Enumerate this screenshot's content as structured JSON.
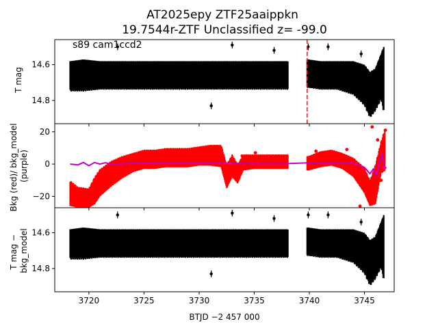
{
  "chart_data": [
    {
      "type": "scatter",
      "title": "AT2025epy  ZTF25aaippkn",
      "subtitle": "19.7544r-ZTF Unclassified z= -99.0",
      "annotation": "s89 cam1ccd2",
      "ylabel": "T mag",
      "ylim": [
        14.93,
        14.46
      ],
      "yticks": [
        "14.6",
        "14.8"
      ],
      "ytick_values": [
        14.6,
        14.8
      ],
      "marker_line_x": 3739.8,
      "colors": {
        "points": "#000000",
        "marker_line": "#d62728"
      },
      "series": [
        {
          "x": [
            3718.3,
            3719.5,
            3721,
            3723,
            3725,
            3727,
            3729,
            3731,
            3733,
            3735,
            3737,
            3738.0,
            3739.9,
            3741,
            3742.5,
            3744,
            3745,
            3745.5,
            3746,
            3746.5,
            3746.8
          ],
          "y": [
            14.66,
            14.66,
            14.66,
            14.66,
            14.66,
            14.66,
            14.66,
            14.66,
            14.66,
            14.66,
            14.66,
            14.66,
            14.65,
            14.66,
            14.66,
            14.67,
            14.71,
            14.78,
            14.73,
            14.66,
            14.6
          ],
          "ylow": [
            14.58,
            14.57,
            14.58,
            14.58,
            14.58,
            14.58,
            14.58,
            14.58,
            14.58,
            14.58,
            14.58,
            14.58,
            14.57,
            14.58,
            14.58,
            14.58,
            14.6,
            14.64,
            14.62,
            14.54,
            14.49
          ],
          "yhigh": [
            14.75,
            14.75,
            14.74,
            14.74,
            14.74,
            14.74,
            14.74,
            14.74,
            14.74,
            14.74,
            14.74,
            14.74,
            14.73,
            14.74,
            14.74,
            14.77,
            14.83,
            14.9,
            14.86,
            14.8,
            14.88
          ]
        }
      ]
    },
    {
      "type": "line",
      "ylabel": "Bkg (red)/ bkg_model (purple)",
      "ylim": [
        -27,
        25
      ],
      "yticks": [
        "20",
        "0",
        "−20"
      ],
      "ytick_values": [
        20,
        0,
        -20
      ],
      "colors": {
        "bkg": "#ff0000",
        "bkg_model": "#bf00bf"
      },
      "series": [
        {
          "name": "Bkg (red)",
          "x": [
            3718.3,
            3719,
            3720,
            3720.5,
            3721,
            3722,
            3723,
            3724,
            3725,
            3726,
            3727,
            3728,
            3729,
            3730,
            3731,
            3732,
            3732.5,
            3733,
            3733.5,
            3734,
            3735,
            3736,
            3737,
            3738.0,
            3739.9,
            3741,
            3742,
            3743,
            3744,
            3745,
            3745.5,
            3746,
            3746.5,
            3746.9
          ],
          "y": [
            -18,
            -21,
            -22,
            -17,
            -10,
            -5,
            -2,
            1,
            3,
            3,
            4,
            4,
            4,
            5,
            6,
            5,
            -8,
            -2,
            -6,
            1,
            2,
            2,
            2,
            2,
            1,
            3,
            4,
            2,
            -2,
            -10,
            -20,
            -15,
            5,
            12
          ],
          "ylow": [
            -26,
            -27,
            -27,
            -25,
            -20,
            -14,
            -9,
            -5,
            -3,
            -3,
            -2,
            -2,
            -2,
            -1,
            -1,
            -2,
            -15,
            -8,
            -12,
            -4,
            -3,
            -3,
            -3,
            -3,
            -4,
            -2,
            -1,
            -3,
            -8,
            -18,
            -26,
            -25,
            -6,
            -4
          ],
          "yhigh": [
            -10,
            -14,
            -15,
            -8,
            -3,
            2,
            5,
            7,
            9,
            9,
            10,
            10,
            10,
            11,
            12,
            12,
            0,
            6,
            0,
            6,
            6,
            6,
            6,
            6,
            5,
            8,
            9,
            7,
            4,
            -2,
            -10,
            0,
            14,
            23
          ]
        },
        {
          "name": "bkg_model (purple)",
          "x": [
            3718.3,
            3719,
            3719.5,
            3720,
            3720.5,
            3721,
            3721.5,
            3722,
            3724,
            3726,
            3728,
            3730,
            3732,
            3734,
            3736,
            3738.0,
            3739.9,
            3742,
            3744,
            3745,
            3745.5,
            3745.8,
            3746.1,
            3746.4,
            3746.6,
            3746.8,
            3747
          ],
          "y": [
            0,
            -0.5,
            1,
            -1,
            1,
            0,
            0.8,
            0,
            0.5,
            0.7,
            0.6,
            0.5,
            0.5,
            0.4,
            0.3,
            0.3,
            0.8,
            0.8,
            0.5,
            -2,
            -6,
            -3,
            -7,
            3,
            6,
            -3,
            -2
          ]
        }
      ]
    },
    {
      "type": "scatter",
      "ylabel": "T mag − bkg_model",
      "xlabel": "BTJD −2 457 000",
      "xlim": [
        3716.9,
        3747.7
      ],
      "xticks": [
        "3720",
        "3725",
        "3730",
        "3735",
        "3740",
        "3745"
      ],
      "xtick_values": [
        3720,
        3725,
        3730,
        3735,
        3740,
        3745
      ],
      "ylim": [
        14.93,
        14.46
      ],
      "yticks": [
        "14.6",
        "14.8"
      ],
      "ytick_values": [
        14.6,
        14.8
      ],
      "colors": {
        "points": "#000000"
      },
      "series": [
        {
          "x": [
            3718.3,
            3719.5,
            3721,
            3723,
            3725,
            3727,
            3729,
            3731,
            3733,
            3735,
            3737,
            3738.0,
            3739.9,
            3741,
            3742.5,
            3744,
            3745,
            3745.5,
            3746,
            3746.5,
            3746.8
          ],
          "y": [
            14.66,
            14.66,
            14.66,
            14.66,
            14.66,
            14.66,
            14.66,
            14.66,
            14.66,
            14.66,
            14.66,
            14.66,
            14.65,
            14.66,
            14.66,
            14.67,
            14.71,
            14.78,
            14.73,
            14.66,
            14.6
          ],
          "ylow": [
            14.58,
            14.57,
            14.58,
            14.58,
            14.58,
            14.58,
            14.58,
            14.58,
            14.58,
            14.58,
            14.58,
            14.58,
            14.57,
            14.58,
            14.58,
            14.58,
            14.6,
            14.64,
            14.62,
            14.54,
            14.49
          ],
          "yhigh": [
            14.75,
            14.75,
            14.74,
            14.74,
            14.74,
            14.74,
            14.74,
            14.74,
            14.74,
            14.74,
            14.74,
            14.74,
            14.73,
            14.74,
            14.74,
            14.77,
            14.83,
            14.9,
            14.86,
            14.8,
            14.88
          ]
        }
      ]
    }
  ]
}
